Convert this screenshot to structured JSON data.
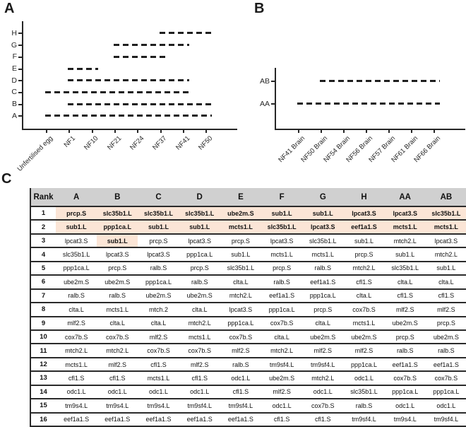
{
  "figure": {
    "panel_a_label": "A",
    "panel_b_label": "B",
    "panel_c_label": "C",
    "axis_color": "#262626"
  },
  "chart_data": [
    {
      "panel": "A",
      "type": "line",
      "subtype": "horizontal_dashed_category_ranges",
      "line_style": "dashed",
      "line_color": "#1f1f1f",
      "x_categories": [
        "Unfertilised egg",
        "NF1",
        "NF10",
        "NF21",
        "NF24",
        "NF37",
        "NF41",
        "NF50"
      ],
      "y_categories_bottom_to_top": [
        "A",
        "B",
        "C",
        "D",
        "E",
        "F",
        "G",
        "H"
      ],
      "ranges": [
        {
          "y": "A",
          "from": "Unfertilised egg",
          "to": "NF50"
        },
        {
          "y": "B",
          "from": "NF1",
          "to": "NF50"
        },
        {
          "y": "C",
          "from": "Unfertilised egg",
          "to": "NF41"
        },
        {
          "y": "D",
          "from": "NF1",
          "to": "NF41"
        },
        {
          "y": "E",
          "from": "NF1",
          "to": "NF10"
        },
        {
          "y": "F",
          "from": "NF21",
          "to": "NF37"
        },
        {
          "y": "G",
          "from": "NF21",
          "to": "NF41"
        },
        {
          "y": "H",
          "from": "NF37",
          "to": "NF50"
        }
      ]
    },
    {
      "panel": "B",
      "type": "line",
      "subtype": "horizontal_dashed_category_ranges",
      "line_style": "dashed",
      "line_color": "#1f1f1f",
      "x_categories": [
        "NF41 Brain",
        "NF50 Brain",
        "NF54 Brain",
        "NF56 Brain",
        "NF57 Brain",
        "NF61 Brain",
        "NF66 Brain"
      ],
      "y_categories_bottom_to_top": [
        "AA",
        "AB"
      ],
      "ranges": [
        {
          "y": "AA",
          "from": "NF41 Brain",
          "to": "NF66 Brain"
        },
        {
          "y": "AB",
          "from": "NF50 Brain",
          "to": "NF66 Brain"
        }
      ]
    }
  ],
  "table": {
    "panel": "C",
    "headers": [
      "Rank",
      "A",
      "B",
      "C",
      "D",
      "E",
      "F",
      "G",
      "H",
      "AA",
      "AB"
    ],
    "colors": {
      "header_bg": "#d0d0d0",
      "highlight_bg": "#fbe5d6",
      "row_line": "#2b2b2b"
    },
    "rows": [
      {
        "rank": "1",
        "highlighted_columns": [
          "A",
          "B",
          "C",
          "D",
          "E",
          "F",
          "G",
          "H",
          "AA",
          "AB"
        ],
        "cells": [
          "prcp.S",
          "slc35b1.L",
          "slc35b1.L",
          "slc35b1.L",
          "ube2m.S",
          "sub1.L",
          "sub1.L",
          "lpcat3.S",
          "lpcat3.S",
          "slc35b1.L"
        ]
      },
      {
        "rank": "2",
        "highlighted_columns": [
          "A",
          "B",
          "C",
          "D",
          "E",
          "F",
          "G",
          "H",
          "AA",
          "AB"
        ],
        "cells": [
          "sub1.L",
          "ppp1ca.L",
          "sub1.L",
          "sub1.L",
          "mcts1.L",
          "slc35b1.L",
          "lpcat3.S",
          "eef1a1.S",
          "mcts1.L",
          "mcts1.L"
        ]
      },
      {
        "rank": "3",
        "highlighted_columns": [
          "B"
        ],
        "cells": [
          "lpcat3.S",
          "sub1.L",
          "prcp.S",
          "lpcat3.S",
          "prcp.S",
          "lpcat3.S",
          "slc35b1.L",
          "sub1.L",
          "mtch2.L",
          "lpcat3.S"
        ]
      },
      {
        "rank": "4",
        "highlighted_columns": [],
        "cells": [
          "slc35b1.L",
          "lpcat3.S",
          "lpcat3.S",
          "ppp1ca.L",
          "sub1.L",
          "mcts1.L",
          "mcts1.L",
          "prcp.S",
          "sub1.L",
          "mtch2.L"
        ]
      },
      {
        "rank": "5",
        "highlighted_columns": [],
        "cells": [
          "ppp1ca.L",
          "prcp.S",
          "ralb.S",
          "prcp.S",
          "slc35b1.L",
          "prcp.S",
          "ralb.S",
          "mtch2.L",
          "slc35b1.L",
          "sub1.L"
        ]
      },
      {
        "rank": "6",
        "highlighted_columns": [],
        "cells": [
          "ube2m.S",
          "ube2m.S",
          "ppp1ca.L",
          "ralb.S",
          "clta.L",
          "ralb.S",
          "eef1a1.S",
          "cfl1.S",
          "clta.L",
          "clta.L"
        ]
      },
      {
        "rank": "7",
        "highlighted_columns": [],
        "cells": [
          "ralb.S",
          "ralb.S",
          "ube2m.S",
          "ube2m.S",
          "mtch2.L",
          "eef1a1.S",
          "ppp1ca.L",
          "clta.L",
          "cfl1.S",
          "cfl1.S"
        ]
      },
      {
        "rank": "8",
        "highlighted_columns": [],
        "cells": [
          "clta.L",
          "mcts1.L",
          "mtch.2",
          "clta.L",
          "lpcat3.S",
          "ppp1ca.L",
          "prcp.S",
          "cox7b.S",
          "mlf2.S",
          "mlf2.S"
        ]
      },
      {
        "rank": "9",
        "highlighted_columns": [],
        "cells": [
          "mlf2.S",
          "clta.L",
          "clta.L",
          "mtch2.L",
          "ppp1ca.L",
          "cox7b.S",
          "clta.L",
          "mcts1.L",
          "ube2m.S",
          "prcp.S"
        ]
      },
      {
        "rank": "10",
        "highlighted_columns": [],
        "cells": [
          "cox7b.S",
          "cox7b.S",
          "mlf2.S",
          "mcts1.L",
          "cox7b.S",
          "clta.L",
          "ube2m.S",
          "ube2m.S",
          "prcp.S",
          "ube2m.S"
        ]
      },
      {
        "rank": "11",
        "highlighted_columns": [],
        "cells": [
          "mtch2.L",
          "mtch2.L",
          "cox7b.S",
          "cox7b.S",
          "mlf2.S",
          "mtch2.L",
          "mlf2.S",
          "mlf2.S",
          "ralb.S",
          "ralb.S"
        ]
      },
      {
        "rank": "12",
        "highlighted_columns": [],
        "cells": [
          "mcts1.L",
          "mlf2.S",
          "cfl1.S",
          "mlf2.S",
          "ralb.S",
          "tm9sf4.L",
          "tm9sf4.L",
          "ppp1ca.L",
          "eef1a1.S",
          "eef1a1.S"
        ]
      },
      {
        "rank": "13",
        "highlighted_columns": [],
        "cells": [
          "cfl1.S",
          "cfl1.S",
          "mcts1.L",
          "cfl1.S",
          "odc1.L",
          "ube2m.S",
          "mtch2.L",
          "odc1.L",
          "cox7b.S",
          "cox7b.S"
        ]
      },
      {
        "rank": "14",
        "highlighted_columns": [],
        "cells": [
          "odc1.L",
          "odc1.L",
          "odc1.L",
          "odc1.L",
          "cfl1.S",
          "mlf2.S",
          "odc1.L",
          "slc35b1.L",
          "ppp1ca.L",
          "ppp1ca.L"
        ]
      },
      {
        "rank": "15",
        "highlighted_columns": [],
        "cells": [
          "tm9s4.L",
          "tm9s4.L",
          "tm9s4.L",
          "tm9sf4.L",
          "tm9sf4.L",
          "odc1.L",
          "cox7b.S",
          "ralb.S",
          "odc1.L",
          "odc1.L"
        ]
      },
      {
        "rank": "16",
        "highlighted_columns": [],
        "cells": [
          "eef1a1.S",
          "eef1a1.S",
          "eef1a1.S",
          "eef1a1.S",
          "eef1a1.S",
          "cfl1.S",
          "cfl1.S",
          "tm9sf4.L",
          "tm9s4.L",
          "tm9sf4.L"
        ]
      }
    ]
  }
}
